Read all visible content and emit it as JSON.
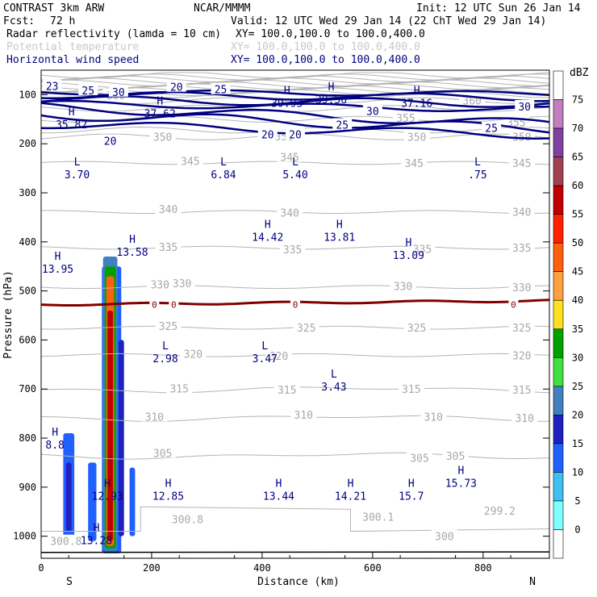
{
  "chart_data": {
    "type": "cross-section",
    "header": {
      "model": "CONTRAST  3km ARW",
      "center": "NCAR/MMMM",
      "init": "Init: 12 UTC Sun 26 Jan 14",
      "fcst_label": "Fcst:",
      "fcst_value": "72 h",
      "valid": "Valid: 12 UTC Wed 29 Jan 14 (22 ChT Wed 29 Jan 14)"
    },
    "fields": [
      {
        "name": "Radar reflectivity (lamda = 10 cm)",
        "xy": "XY= 100.0,100.0 to 100.0,400.0",
        "color": "#000000"
      },
      {
        "name": "Potential temperature",
        "xy": "XY= 100.0,100.0 to 100.0,400.0",
        "color": "#c8c8c8"
      },
      {
        "name": "Horizontal wind speed",
        "xy": "XY= 100.0,100.0 to 100.0,400.0",
        "color": "#000080"
      }
    ],
    "xlabel": "Distance (km)",
    "ylabel": "Pressure (hPa)",
    "xlim": [
      0,
      920
    ],
    "ylim": [
      50,
      1045
    ],
    "x_ticks": [
      0,
      200,
      400,
      600,
      800
    ],
    "y_ticks": [
      100,
      200,
      300,
      400,
      500,
      600,
      700,
      800,
      900,
      1000
    ],
    "end_labels": {
      "left": "S",
      "right": "N"
    },
    "colorbar": {
      "unit": "dBZ",
      "levels": [
        0,
        5,
        10,
        15,
        20,
        25,
        30,
        35,
        40,
        45,
        50,
        55,
        60,
        65,
        70,
        75
      ],
      "colors": [
        "#ffffff",
        "#80ffff",
        "#40c0f0",
        "#2060ff",
        "#2020c0",
        "#4080c0",
        "#40e040",
        "#00a000",
        "#ffe020",
        "#ffa040",
        "#ff6010",
        "#ff2000",
        "#c00000",
        "#a04050",
        "#8040a0",
        "#c080c0",
        "#ffffff"
      ]
    },
    "theta_labels": [
      {
        "value": "360",
        "x": 135,
        "p": 101
      },
      {
        "value": "360",
        "x": 780,
        "p": 112
      },
      {
        "value": "355",
        "x": 660,
        "p": 147
      },
      {
        "value": "355",
        "x": 860,
        "p": 156
      },
      {
        "value": "350",
        "x": 220,
        "p": 186
      },
      {
        "value": "350",
        "x": 440,
        "p": 185
      },
      {
        "value": "350",
        "x": 680,
        "p": 186
      },
      {
        "value": "350",
        "x": 870,
        "p": 186
      },
      {
        "value": "345",
        "x": 270,
        "p": 235
      },
      {
        "value": "345",
        "x": 450,
        "p": 227
      },
      {
        "value": "345",
        "x": 675,
        "p": 239
      },
      {
        "value": "345",
        "x": 870,
        "p": 239
      },
      {
        "value": "340",
        "x": 230,
        "p": 333
      },
      {
        "value": "340",
        "x": 450,
        "p": 340
      },
      {
        "value": "340",
        "x": 870,
        "p": 339
      },
      {
        "value": "335",
        "x": 230,
        "p": 410
      },
      {
        "value": "335",
        "x": 455,
        "p": 415
      },
      {
        "value": "335",
        "x": 690,
        "p": 414
      },
      {
        "value": "335",
        "x": 870,
        "p": 412
      },
      {
        "value": "330",
        "x": 255,
        "p": 484
      },
      {
        "value": "330",
        "x": 215,
        "p": 487
      },
      {
        "value": "330",
        "x": 655,
        "p": 490
      },
      {
        "value": "330",
        "x": 870,
        "p": 492
      },
      {
        "value": "325",
        "x": 230,
        "p": 571
      },
      {
        "value": "325",
        "x": 480,
        "p": 575
      },
      {
        "value": "325",
        "x": 680,
        "p": 575
      },
      {
        "value": "325",
        "x": 870,
        "p": 575
      },
      {
        "value": "320",
        "x": 275,
        "p": 628
      },
      {
        "value": "320",
        "x": 430,
        "p": 632
      },
      {
        "value": "320",
        "x": 870,
        "p": 631
      },
      {
        "value": "315",
        "x": 250,
        "p": 699
      },
      {
        "value": "315",
        "x": 445,
        "p": 701
      },
      {
        "value": "315",
        "x": 670,
        "p": 700
      },
      {
        "value": "315",
        "x": 870,
        "p": 701
      },
      {
        "value": "310",
        "x": 205,
        "p": 756
      },
      {
        "value": "310",
        "x": 475,
        "p": 752
      },
      {
        "value": "310",
        "x": 710,
        "p": 756
      },
      {
        "value": "310",
        "x": 875,
        "p": 759
      },
      {
        "value": "305",
        "x": 220,
        "p": 830
      },
      {
        "value": "305",
        "x": 685,
        "p": 840
      },
      {
        "value": "305",
        "x": 750,
        "p": 836
      },
      {
        "value": "300.8",
        "x": 265,
        "p": 965
      },
      {
        "value": "300.1",
        "x": 610,
        "p": 960
      },
      {
        "value": "299.2",
        "x": 830,
        "p": 948
      },
      {
        "value": "300",
        "x": 730,
        "p": 1000
      },
      {
        "value": "300.8",
        "x": 45,
        "p": 1010
      }
    ],
    "wind_labels": [
      {
        "value": "23",
        "x": 20,
        "p": 82
      },
      {
        "value": "25",
        "x": 85,
        "p": 91
      },
      {
        "value": "30",
        "x": 140,
        "p": 94
      },
      {
        "value": "20",
        "x": 245,
        "p": 84
      },
      {
        "value": "25",
        "x": 325,
        "p": 89
      },
      {
        "value": "30",
        "x": 600,
        "p": 133
      },
      {
        "value": "30",
        "x": 875,
        "p": 124
      },
      {
        "value": "20",
        "x": 410,
        "p": 181
      },
      {
        "value": "20",
        "x": 460,
        "p": 181
      },
      {
        "value": "25",
        "x": 545,
        "p": 161
      },
      {
        "value": "25",
        "x": 815,
        "p": 168
      },
      {
        "value": "20",
        "x": 125,
        "p": 194
      }
    ],
    "extrema": [
      {
        "kind": "H",
        "value": "35.82",
        "x": 55,
        "p": 155
      },
      {
        "kind": "H",
        "value": "37.62",
        "x": 215,
        "p": 133
      },
      {
        "kind": "H",
        "value": "39.93",
        "x": 445,
        "p": 112
      },
      {
        "kind": "H",
        "value": "39.56",
        "x": 525,
        "p": 104
      },
      {
        "kind": "H",
        "value": "37.16",
        "x": 680,
        "p": 112
      },
      {
        "kind": "L",
        "value": "3.70",
        "x": 65,
        "p": 257
      },
      {
        "kind": "L",
        "value": "6.84",
        "x": 330,
        "p": 257
      },
      {
        "kind": "L",
        "value": "5.40",
        "x": 460,
        "p": 257
      },
      {
        "kind": "L",
        "value": ".75",
        "x": 790,
        "p": 257
      },
      {
        "kind": "H",
        "value": "14.42",
        "x": 410,
        "p": 385
      },
      {
        "kind": "H",
        "value": "13.81",
        "x": 540,
        "p": 385
      },
      {
        "kind": "H",
        "value": "13.58",
        "x": 165,
        "p": 415
      },
      {
        "kind": "H",
        "value": "13.09",
        "x": 665,
        "p": 422
      },
      {
        "kind": "H",
        "value": "13.95",
        "x": 30,
        "p": 450
      },
      {
        "kind": "L",
        "value": "2.98",
        "x": 225,
        "p": 632
      },
      {
        "kind": "L",
        "value": "3.47",
        "x": 405,
        "p": 632
      },
      {
        "kind": "L",
        "value": "3.43",
        "x": 530,
        "p": 690
      },
      {
        "kind": "H",
        "value": "8.8",
        "x": 25,
        "p": 808
      },
      {
        "kind": "H",
        "value": "12.93",
        "x": 120,
        "p": 913
      },
      {
        "kind": "H",
        "value": "12.85",
        "x": 230,
        "p": 913
      },
      {
        "kind": "H",
        "value": "13.44",
        "x": 430,
        "p": 913
      },
      {
        "kind": "H",
        "value": "14.21",
        "x": 560,
        "p": 913
      },
      {
        "kind": "H",
        "value": "15.7",
        "x": 670,
        "p": 913
      },
      {
        "kind": "H",
        "value": "15.73",
        "x": 760,
        "p": 886
      },
      {
        "kind": "H",
        "value": "13.28",
        "x": 100,
        "p": 1003
      }
    ],
    "zero_line": {
      "value": "0",
      "p": 528,
      "label_x": [
        205,
        240,
        460,
        855
      ]
    },
    "reflectivity_cells": [
      {
        "x0": 40,
        "x1": 60,
        "p0": 790,
        "p1": 1010,
        "dbz": 10
      },
      {
        "x0": 45,
        "x1": 55,
        "p0": 850,
        "p1": 990,
        "dbz": 15
      },
      {
        "x0": 85,
        "x1": 100,
        "p0": 850,
        "p1": 1010,
        "dbz": 10
      },
      {
        "x0": 110,
        "x1": 145,
        "p0": 450,
        "p1": 1035,
        "dbz": 10
      },
      {
        "x0": 112,
        "x1": 138,
        "p0": 430,
        "p1": 1030,
        "dbz": 20
      },
      {
        "x0": 115,
        "x1": 135,
        "p0": 450,
        "p1": 1025,
        "dbz": 30
      },
      {
        "x0": 118,
        "x1": 132,
        "p0": 470,
        "p1": 1020,
        "dbz": 45
      },
      {
        "x0": 120,
        "x1": 130,
        "p0": 540,
        "p1": 1010,
        "dbz": 55
      },
      {
        "x0": 140,
        "x1": 150,
        "p0": 600,
        "p1": 1000,
        "dbz": 15
      },
      {
        "x0": 160,
        "x1": 170,
        "p0": 860,
        "p1": 1000,
        "dbz": 10
      }
    ]
  }
}
